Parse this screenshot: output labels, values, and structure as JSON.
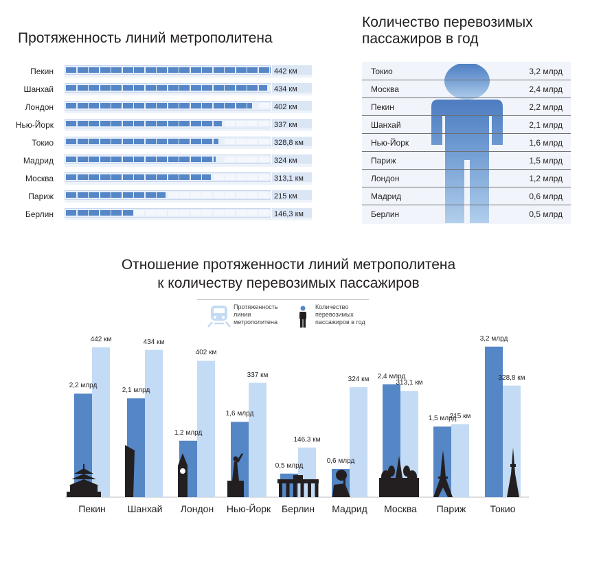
{
  "colors": {
    "dark_blue": "#5586c6",
    "light_blue": "#c3dbf4",
    "track": "#e8eff9",
    "silhouette": "#231f20"
  },
  "length_chart": {
    "title": "Протяженность линий метрополитена",
    "rows": [
      {
        "city": "Пекин",
        "km": 442,
        "label": "442 км"
      },
      {
        "city": "Шанхай",
        "km": 434,
        "label": "434 км"
      },
      {
        "city": "Лондон",
        "km": 402,
        "label": "402 км"
      },
      {
        "city": "Нью-Йорк",
        "km": 337,
        "label": "337 км"
      },
      {
        "city": "Токио",
        "km": 328.8,
        "label": "328,8 км"
      },
      {
        "city": "Мадрид",
        "km": 324,
        "label": "324 км"
      },
      {
        "city": "Москва",
        "km": 313.1,
        "label": "313,1 км"
      },
      {
        "city": "Париж",
        "km": 215,
        "label": "215 км"
      },
      {
        "city": "Берлин",
        "km": 146.3,
        "label": "146,3 км"
      }
    ]
  },
  "passenger_chart": {
    "title": "Количество перевозимых\nпассажиров в год",
    "rows": [
      {
        "city": "Токио",
        "label": "3,2 млрд"
      },
      {
        "city": "Москва",
        "label": "2,4 млрд"
      },
      {
        "city": "Пекин",
        "label": "2,2 млрд"
      },
      {
        "city": "Шанхай",
        "label": "2,1 млрд"
      },
      {
        "city": "Нью-Йорк",
        "label": "1,6 млрд"
      },
      {
        "city": "Париж",
        "label": "1,5 млрд"
      },
      {
        "city": "Лондон",
        "label": "1,2 млрд"
      },
      {
        "city": "Мадрид",
        "label": "0,6 млрд"
      },
      {
        "city": "Берлин",
        "label": "0,5 млрд"
      }
    ]
  },
  "ratio_chart": {
    "title": "Отношение протяженности линий метрополитена\nк количеству перевозимых пассажиров",
    "legend": {
      "length": "Протяженность\nлинии\nметрополитена",
      "passengers": "Количество\nперевозимых\nпассажиров в год"
    }
  },
  "chart_data": [
    {
      "type": "bar",
      "title": "Протяженность линий метрополитена",
      "categories": [
        "Пекин",
        "Шанхай",
        "Лондон",
        "Нью-Йорк",
        "Токио",
        "Мадрид",
        "Москва",
        "Париж",
        "Берлин"
      ],
      "values": [
        442,
        434,
        402,
        337,
        328.8,
        324,
        313.1,
        215,
        146.3
      ]
    },
    {
      "type": "table",
      "title": "Количество перевозимых пассажиров в год",
      "categories": [
        "Токио",
        "Москва",
        "Пекин",
        "Шанхай",
        "Нью-Йорк",
        "Париж",
        "Лондон",
        "Мадрид",
        "Берлин"
      ],
      "values": [
        3.2,
        2.4,
        2.2,
        2.1,
        1.6,
        1.5,
        1.2,
        0.6,
        0.5
      ]
    },
    {
      "type": "bar",
      "title": "Отношение протяженности линий метрополитена к количеству перевозимых пассажиров",
      "categories": [
        "Пекин",
        "Шанхай",
        "Лондон",
        "Нью-Йорк",
        "Берлин",
        "Мадрид",
        "Москва",
        "Париж",
        "Токио"
      ],
      "series": [
        {
          "name": "Количество перевозимых пассажиров в год",
          "values": [
            2.2,
            2.1,
            1.2,
            1.6,
            0.5,
            0.6,
            2.4,
            1.5,
            3.2
          ],
          "labels": [
            "2,2 млрд",
            "2,1 млрд",
            "1,2 млрд",
            "1,6 млрд",
            "0,5 млрд",
            "0,6 млрд",
            "2,4 млрд",
            "1,5 млрд",
            "3,2 млрд"
          ]
        },
        {
          "name": "Протяженность линии метрополитена",
          "values": [
            442,
            434,
            402,
            337,
            146.3,
            324,
            313.1,
            215,
            328.8
          ],
          "labels": [
            "442 км",
            "434 км",
            "402 км",
            "337 км",
            "146,3 км",
            "324 км",
            "313,1 км",
            "215 км",
            "328,8 км"
          ]
        }
      ],
      "landmarks": [
        "temple-of-heaven",
        "shanghai-tower",
        "big-ben",
        "statue-of-liberty",
        "brandenburg-gate",
        "bear-and-strawberry-tree",
        "st-basils-cathedral",
        "eiffel-tower",
        "tokyo-skytree"
      ]
    }
  ]
}
